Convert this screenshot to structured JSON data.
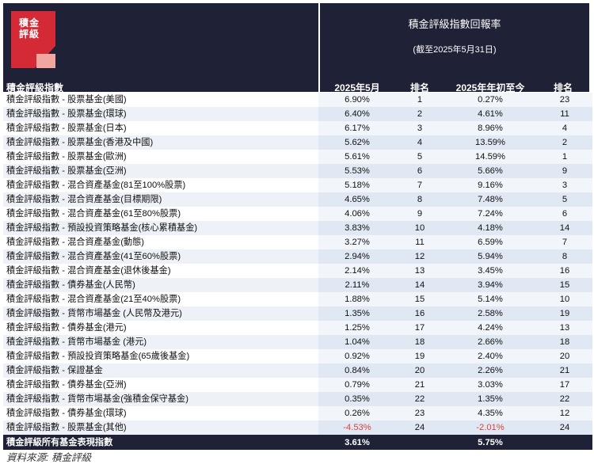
{
  "logo": {
    "text_line1": "積金",
    "text_line2": "評級"
  },
  "header": {
    "title": "積金評級指數回報率",
    "subtitle": "(截至2025年5月31日)",
    "col_index": "積金評級指數",
    "col_month": "2025年5月",
    "col_rank1": "排名",
    "col_ytd": "2025年年初至今",
    "col_rank2": "排名"
  },
  "rows": [
    {
      "name": "積金評級指數 - 股票基金(美國)",
      "month": "6.90%",
      "rank1": "1",
      "ytd": "0.27%",
      "rank2": "23"
    },
    {
      "name": "積金評級指數 - 股票基金(環球)",
      "month": "6.40%",
      "rank1": "2",
      "ytd": "4.61%",
      "rank2": "11"
    },
    {
      "name": "積金評級指數 - 股票基金(日本)",
      "month": "6.17%",
      "rank1": "3",
      "ytd": "8.96%",
      "rank2": "4"
    },
    {
      "name": "積金評級指數 - 股票基金(香港及中國)",
      "month": "5.62%",
      "rank1": "4",
      "ytd": "13.59%",
      "rank2": "2"
    },
    {
      "name": "積金評級指數 - 股票基金(歐洲)",
      "month": "5.61%",
      "rank1": "5",
      "ytd": "14.59%",
      "rank2": "1"
    },
    {
      "name": "積金評級指數 - 股票基金(亞洲)",
      "month": "5.53%",
      "rank1": "6",
      "ytd": "5.66%",
      "rank2": "9"
    },
    {
      "name": "積金評級指數 - 混合資產基金(81至100%股票)",
      "month": "5.18%",
      "rank1": "7",
      "ytd": "9.16%",
      "rank2": "3"
    },
    {
      "name": "積金評級指數 - 混合資產基金(目標期限)",
      "month": "4.65%",
      "rank1": "8",
      "ytd": "7.48%",
      "rank2": "5"
    },
    {
      "name": "積金評級指數 - 混合資產基金(61至80%股票)",
      "month": "4.06%",
      "rank1": "9",
      "ytd": "7.24%",
      "rank2": "6"
    },
    {
      "name": "積金評級指數 - 預設投資策略基金(核心累積基金)",
      "month": "3.83%",
      "rank1": "10",
      "ytd": "4.18%",
      "rank2": "14"
    },
    {
      "name": "積金評級指數 - 混合資產基金(動態)",
      "month": "3.27%",
      "rank1": "11",
      "ytd": "6.59%",
      "rank2": "7"
    },
    {
      "name": "積金評級指數 - 混合資產基金(41至60%股票)",
      "month": "2.94%",
      "rank1": "12",
      "ytd": "5.94%",
      "rank2": "8"
    },
    {
      "name": "積金評級指數 - 混合資產基金(退休後基金)",
      "month": "2.14%",
      "rank1": "13",
      "ytd": "3.45%",
      "rank2": "16"
    },
    {
      "name": "積金評級指數 - 債券基金(人民幣)",
      "month": "2.11%",
      "rank1": "14",
      "ytd": "3.94%",
      "rank2": "15"
    },
    {
      "name": "積金評級指數 - 混合資產基金(21至40%股票)",
      "month": "1.88%",
      "rank1": "15",
      "ytd": "5.14%",
      "rank2": "10"
    },
    {
      "name": "積金評級指數 - 貨幣市場基金 (人民幣及港元)",
      "month": "1.35%",
      "rank1": "16",
      "ytd": "2.58%",
      "rank2": "19"
    },
    {
      "name": "積金評級指數 - 債券基金(港元)",
      "month": "1.25%",
      "rank1": "17",
      "ytd": "4.24%",
      "rank2": "13"
    },
    {
      "name": "積金評級指數 - 貨幣市場基金 (港元)",
      "month": "1.04%",
      "rank1": "18",
      "ytd": "2.66%",
      "rank2": "18"
    },
    {
      "name": "積金評級指數 - 預設投資策略基金(65歲後基金)",
      "month": "0.92%",
      "rank1": "19",
      "ytd": "2.40%",
      "rank2": "20"
    },
    {
      "name": "積金評級指數 - 保證基金",
      "month": "0.84%",
      "rank1": "20",
      "ytd": "2.26%",
      "rank2": "21"
    },
    {
      "name": "積金評級指數 - 債券基金(亞洲)",
      "month": "0.79%",
      "rank1": "21",
      "ytd": "3.03%",
      "rank2": "17"
    },
    {
      "name": "積金評級指數 - 貨幣市場基金(強積金保守基金)",
      "month": "0.35%",
      "rank1": "22",
      "ytd": "1.35%",
      "rank2": "22"
    },
    {
      "name": "積金評級指數 - 債券基金(環球)",
      "month": "0.26%",
      "rank1": "23",
      "ytd": "4.35%",
      "rank2": "12"
    },
    {
      "name": "積金評級指數 - 股票基金(其他)",
      "month": "-4.53%",
      "rank1": "24",
      "ytd": "-2.01%",
      "rank2": "24"
    }
  ],
  "total": {
    "name": "積金評級所有基金表現指數",
    "month": "3.61%",
    "ytd": "5.75%"
  },
  "source": "資料來源:   積金評級",
  "colors": {
    "header_bg": "#1f2136",
    "logo_red": "#d42a35",
    "logo_pink": "#f2a6a0",
    "negative": "#e0413b"
  }
}
